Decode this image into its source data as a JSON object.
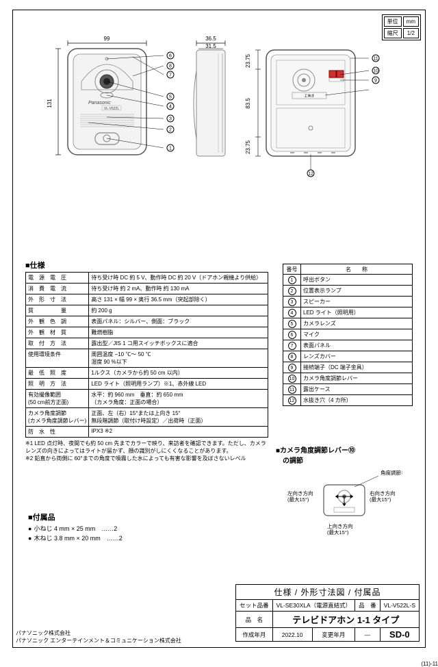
{
  "unit_box": {
    "r1c1": "単位",
    "r1c2": "mm",
    "r2c1": "縮尺",
    "r2c2": "1/2"
  },
  "diagrams": {
    "front": {
      "width_label": "99",
      "height_label": "131",
      "brand": "Panasonic",
      "model": "VL-V522L"
    },
    "side": {
      "width_label": "36.5",
      "inner_label": "31.5"
    },
    "back": {
      "h1": "23.75",
      "h2": "83.5",
      "h3": "23.75",
      "note": "上向き",
      "note2": "カメラ角度調節レバー"
    },
    "callouts": [
      "1",
      "2",
      "3",
      "4",
      "5",
      "6",
      "7",
      "8",
      "9",
      "10",
      "11",
      "12"
    ]
  },
  "spec_title": "■仕様",
  "spec_rows": [
    [
      "電　源　電　圧",
      "待ち受け時 DC 約 5 V、動作時 DC 約 20 V（ドアホン親機より供給）"
    ],
    [
      "消　費　電　流",
      "待ち受け時 約 2 mA、動作時 約 130 mA"
    ],
    [
      "外　形　寸　法",
      "高さ 131 × 幅 99 × 奥行 36.5 mm（突起部除く）"
    ],
    [
      "質　　　　　量",
      "約 200 g"
    ],
    [
      "外　観　色　調",
      "表面パネル：シルバー、側面：ブラック"
    ],
    [
      "外　観　材　質",
      "難燃樹脂"
    ],
    [
      "取　付　方　法",
      "露出型／JIS 1 コ用スイッチボックスに適合"
    ],
    [
      "使用環境条件",
      "周囲温度 −10 ℃〜 50 ℃\n湿度 90 %以下"
    ],
    [
      "最　低　照　度",
      "1ルクス（カメラから約 50 cm 以内）"
    ],
    [
      "照　明　方　法",
      "LED ライト（照明用ランプ）※1、赤外線 LED"
    ],
    [
      "有効撮像範囲\n(50 cm前方正面)",
      "水平：約 960 mm　垂直：約 650 mm\n（カメラ角度：正面の場合）"
    ],
    [
      "カメラ角度調節\n(カメラ角度調節レバー)",
      "正面、左（右）15°または上向き 15°\n無段階調節（取付け時設定）／出荷時（正面）"
    ],
    [
      "防　水　性",
      "IPX3 ※2"
    ]
  ],
  "notes": [
    "※1 LED 点灯時、夜間でも約 50 cm 先までカラーで映り、来訪者を確認できます。ただし、カメラレンズの向きによってはライトが届かず、顔の識別がしにくくなることがあります。",
    "※2 鉛直から両側に 60°までの角度で噴霧した水によっても有害な影響を及ぼさないレベル"
  ],
  "parts_header": [
    "番号",
    "名　　称"
  ],
  "parts_rows": [
    [
      "1",
      "呼出ボタン"
    ],
    [
      "2",
      "位置表示ランプ"
    ],
    [
      "3",
      "スピーカー"
    ],
    [
      "4",
      "LED ライト（照明用）"
    ],
    [
      "5",
      "カメラレンズ"
    ],
    [
      "6",
      "マイク"
    ],
    [
      "7",
      "表面パネル"
    ],
    [
      "8",
      "レンズカバー"
    ],
    [
      "9",
      "接続端子（DC 端子金具）"
    ],
    [
      "10",
      "カメラ角度調節レバー"
    ],
    [
      "11",
      "露出ケース"
    ],
    [
      "12",
      "水抜き穴（4 カ所）"
    ]
  ],
  "lever_title": "■カメラ角度調節レバー⑩\n　の調節",
  "lever_labels": {
    "top": "角度調節レバー",
    "left": "左向き方向\n(最大15°)",
    "right": "右向き方向\n(最大15°)",
    "bottom": "上向き方向\n(最大15°)"
  },
  "acc_title": "■付属品",
  "acc_rows": [
    "小ねじ 4 mm × 25 mm　……2",
    "木ねじ 3.8 mm × 20 mm　……2"
  ],
  "title_block": {
    "big_title": "仕様 / 外形寸法図 / 付属品",
    "set_label": "セット品番",
    "set_val": "VL-SE30XLA（電源直結式）",
    "pn_label": "品　番",
    "pn_val": "VL-V522L-S",
    "name_label": "品　名",
    "name_val": "テレビドアホン 1-1 タイプ",
    "date_label": "作成年月",
    "date_val": "2022.10",
    "rev_label": "変更年月",
    "rev_val": "—",
    "code": "SD-0"
  },
  "corp": [
    "パナソニック株式会社",
    "パナソニック エンターテインメント＆コミュニケーション株式会社"
  ],
  "page_num": "(11)-11",
  "colors": {
    "stroke": "#666",
    "fill": "#e8e8e8"
  }
}
